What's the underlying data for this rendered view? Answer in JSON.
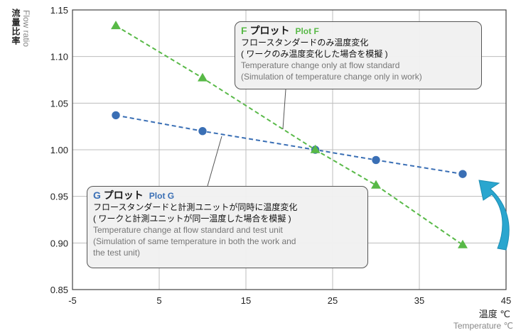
{
  "chart_data": {
    "type": "line",
    "xlabel": "温度 ℃",
    "xlabel_en": "Temperature ℃",
    "ylabel": "流量比率",
    "ylabel_en": "Flow ratio",
    "xlim": [
      -5,
      45
    ],
    "ylim": [
      0.85,
      1.15
    ],
    "xticks": [
      "-5",
      "5",
      "15",
      "25",
      "35",
      "45"
    ],
    "yticks": [
      "0.85",
      "0.90",
      "0.95",
      "1.00",
      "1.05",
      "1.10",
      "1.15"
    ],
    "grid": true,
    "series": [
      {
        "name": "G プロット Plot G",
        "color": "#3a6fb5",
        "marker": "circle",
        "x": [
          0,
          10,
          23,
          30,
          40
        ],
        "y": [
          1.037,
          1.02,
          1.0,
          0.989,
          0.974
        ]
      },
      {
        "name": "F プロット Plot F",
        "color": "#58b947",
        "marker": "triangle",
        "x": [
          0,
          10,
          23,
          30,
          40
        ],
        "y": [
          1.133,
          1.077,
          1.0,
          0.962,
          0.898
        ]
      }
    ]
  },
  "callouts": {
    "f": {
      "letter": "F",
      "title_jp": " プロット",
      "title_en": "Plot F",
      "line1": "フロースタンダードのみ温度変化",
      "line2": "( ワークのみ温度変化した場合を模擬 )",
      "line3": "Temperature change only at flow standard",
      "line4": "(Simulation of temperature change only in work)"
    },
    "g": {
      "letter": "G",
      "title_jp": " プロット",
      "title_en": "Plot G",
      "line1": "フロースタンダードと計測ユニットが同時に温度変化",
      "line2": "( ワークと計測ユニットが同一温度した場合を模擬 )",
      "line3": "Temperature change at flow standard and test unit",
      "line4": "(Simulation of same temperature in both the work and",
      "line5": " the test unit)"
    }
  },
  "arrow_color": "#2aa6cf"
}
